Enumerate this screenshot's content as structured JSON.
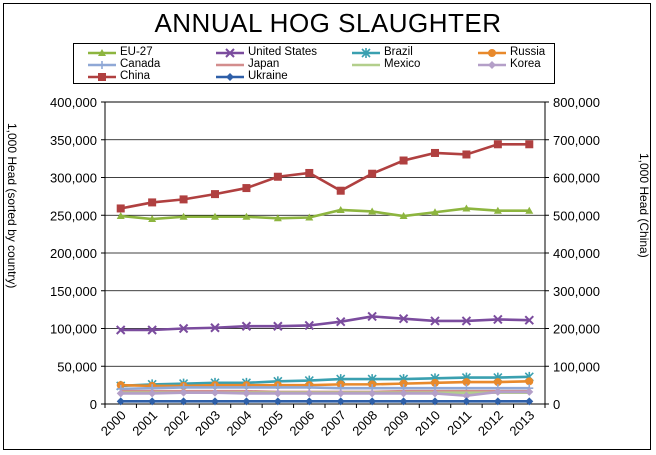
{
  "chart_data": {
    "type": "line",
    "title": "ANNUAL HOG SLAUGHTER",
    "ylabel_left": "1,000 Head (sorted by country)",
    "ylabel_right": "1,000 Head (China)",
    "categories": [
      "2000",
      "2001",
      "2002",
      "2003",
      "2004",
      "2005",
      "2006",
      "2007",
      "2008",
      "2009",
      "2010",
      "2011",
      "2012",
      "2013"
    ],
    "ylim_left": [
      0,
      400000
    ],
    "ylim_right": [
      0,
      800000
    ],
    "yticks_left": [
      "0",
      "50,000",
      "100,000",
      "150,000",
      "200,000",
      "250,000",
      "300,000",
      "350,000",
      "400,000"
    ],
    "yticks_right": [
      "0",
      "100,000",
      "200,000",
      "300,000",
      "400,000",
      "500,000",
      "600,000",
      "700,000",
      "800,000"
    ],
    "grid": "horizontal",
    "legend_position": "top",
    "series": [
      {
        "name": "EU-27",
        "axis": "left",
        "color": "#8db53f",
        "marker": "triangle",
        "values": [
          249000,
          245000,
          248000,
          248000,
          248000,
          246000,
          247000,
          257000,
          255000,
          249000,
          254000,
          259000,
          256000,
          256000
        ]
      },
      {
        "name": "United States",
        "axis": "left",
        "color": "#7b4c9e",
        "marker": "x",
        "values": [
          98000,
          98000,
          100000,
          101000,
          103000,
          103000,
          104000,
          109000,
          116000,
          113000,
          110000,
          110000,
          112000,
          111000
        ]
      },
      {
        "name": "Brazil",
        "axis": "left",
        "color": "#3aa0b0",
        "marker": "star",
        "values": [
          24000,
          26000,
          27000,
          28000,
          28000,
          30000,
          31000,
          33000,
          33000,
          33000,
          34000,
          35000,
          35000,
          36000
        ]
      },
      {
        "name": "Russia",
        "axis": "left",
        "color": "#e8892b",
        "marker": "circle",
        "values": [
          25000,
          24000,
          24000,
          25000,
          25000,
          25000,
          25000,
          26000,
          26000,
          27000,
          28000,
          29000,
          29000,
          30000
        ]
      },
      {
        "name": "Canada",
        "axis": "left",
        "color": "#8fa8d6",
        "marker": "plus",
        "values": [
          20000,
          21000,
          22000,
          22000,
          22000,
          22000,
          22000,
          21000,
          21000,
          21000,
          21000,
          21000,
          21000,
          21000
        ]
      },
      {
        "name": "Japan",
        "axis": "left",
        "color": "#d38d8d",
        "marker": "line",
        "values": [
          17000,
          17000,
          17000,
          17000,
          17000,
          16000,
          16000,
          16000,
          16000,
          17000,
          17000,
          17000,
          17000,
          17000
        ]
      },
      {
        "name": "Mexico",
        "axis": "left",
        "color": "#b3cf8c",
        "marker": "line",
        "values": [
          15000,
          15000,
          15000,
          15000,
          15000,
          15000,
          15000,
          15000,
          15000,
          15000,
          15000,
          15000,
          15000,
          15000
        ]
      },
      {
        "name": "Korea",
        "axis": "left",
        "color": "#b49fc8",
        "marker": "diamond",
        "values": [
          14000,
          14000,
          15000,
          15000,
          14000,
          14000,
          14000,
          14000,
          14000,
          14000,
          14000,
          11000,
          16000,
          16000
        ]
      },
      {
        "name": "China",
        "axis": "right",
        "color": "#b04040",
        "marker": "square",
        "values": [
          518000,
          534000,
          542000,
          556000,
          572000,
          602000,
          612000,
          565000,
          610000,
          645000,
          665000,
          661000,
          688000,
          688000
        ]
      },
      {
        "name": "Ukraine",
        "axis": "left",
        "color": "#2e5fa8",
        "marker": "diamond",
        "values": [
          3500,
          3500,
          3500,
          3500,
          3500,
          3500,
          3500,
          3500,
          3500,
          3500,
          3500,
          3500,
          3500,
          3500
        ]
      }
    ]
  }
}
